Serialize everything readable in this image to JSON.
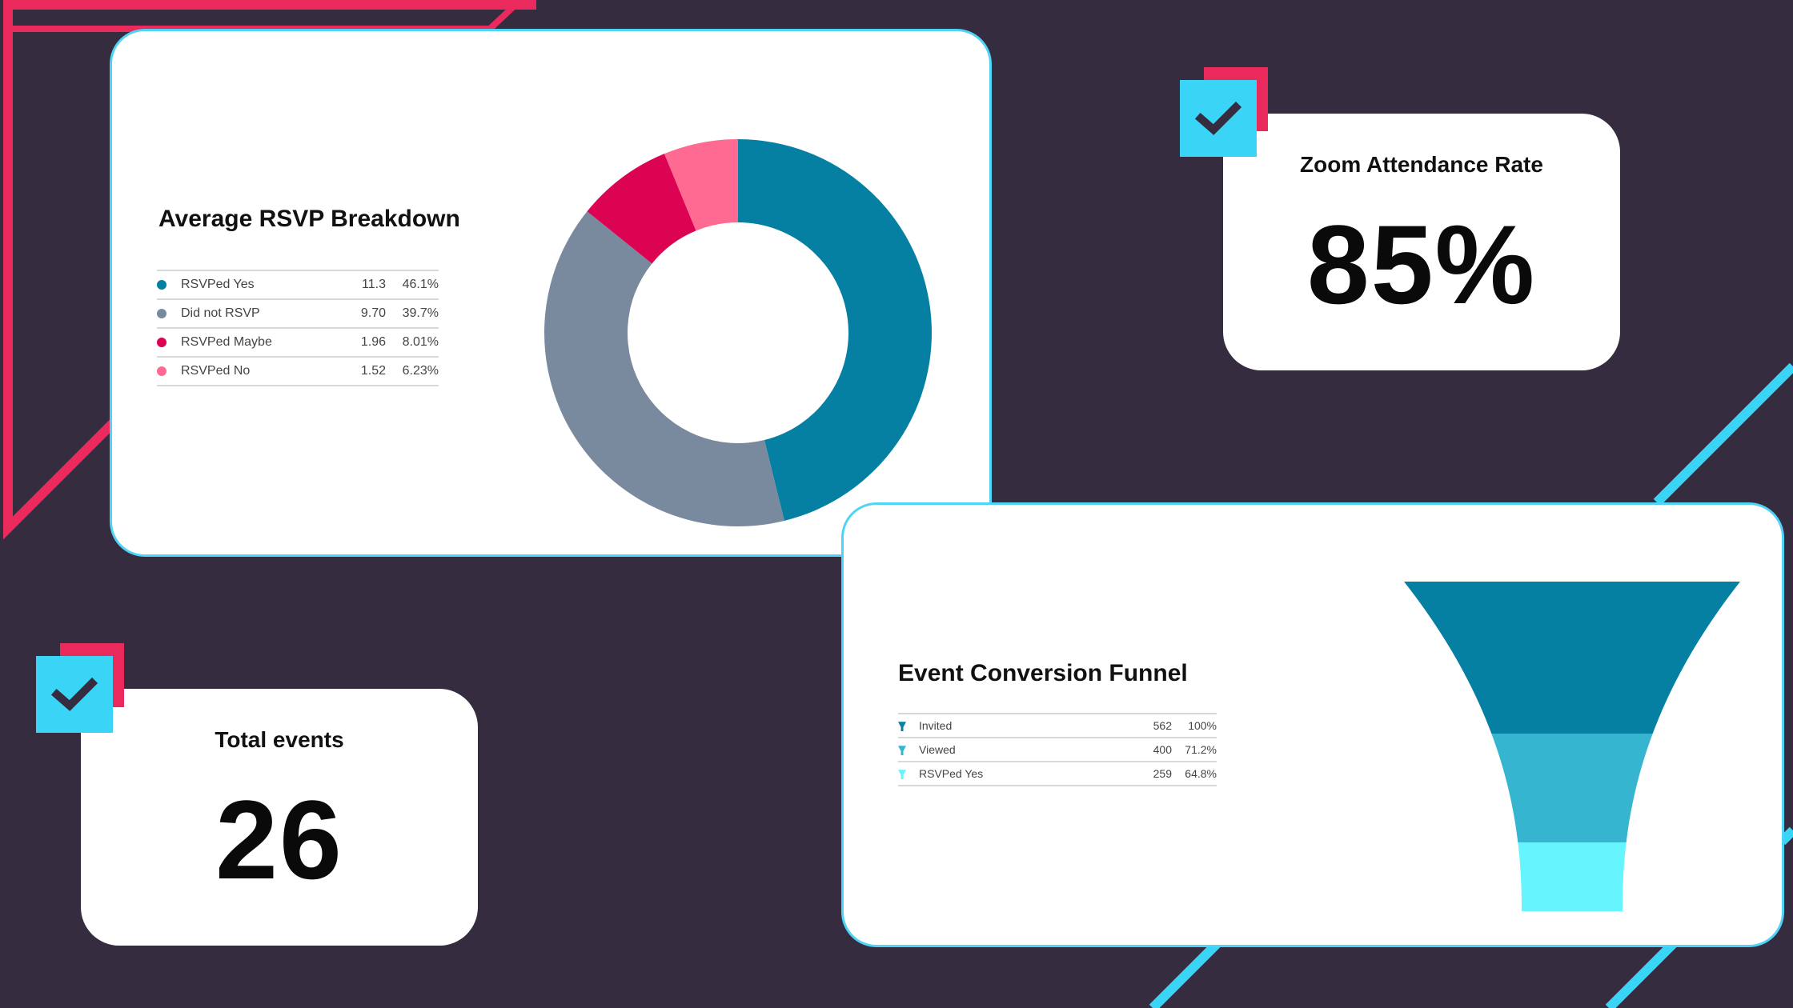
{
  "colors": {
    "background": "#352c40",
    "accent_pink": "#ea2a5c",
    "accent_cyan": "#3ad4f6",
    "card_border": "#4fd4f5"
  },
  "zoom_card": {
    "label": "Zoom Attendance Rate",
    "value": "85%",
    "icon": "check-icon"
  },
  "events_card": {
    "label": "Total events",
    "value": "26",
    "icon": "check-icon"
  },
  "chart_data": [
    {
      "type": "pie",
      "title": "Average RSVP Breakdown",
      "categories": [
        "RSVPed Yes",
        "Did not RSVP",
        "RSVPed Maybe",
        "RSVPed No"
      ],
      "values": [
        11.3,
        9.7,
        1.96,
        1.52
      ],
      "value_labels": [
        "11.3",
        "9.70",
        "1.96",
        "1.52"
      ],
      "percent_labels": [
        "46.1%",
        "39.7%",
        "8.01%",
        "6.23%"
      ],
      "percents": [
        46.1,
        39.7,
        8.01,
        6.23
      ],
      "colors": [
        "#0580a2",
        "#7a8a9e",
        "#dc0352",
        "#ff6a92"
      ],
      "donut": true,
      "legend_position": "left"
    },
    {
      "type": "funnel",
      "title": "Event Conversion Funnel",
      "categories": [
        "Invited",
        "Viewed",
        "RSVPed Yes"
      ],
      "values": [
        562,
        400,
        259
      ],
      "value_labels": [
        "562",
        "400",
        "259"
      ],
      "percent_labels": [
        "100%",
        "71.2%",
        "64.8%"
      ],
      "colors": [
        "#0580a2",
        "#36b5d0",
        "#66f4ff"
      ],
      "legend_position": "left"
    }
  ]
}
